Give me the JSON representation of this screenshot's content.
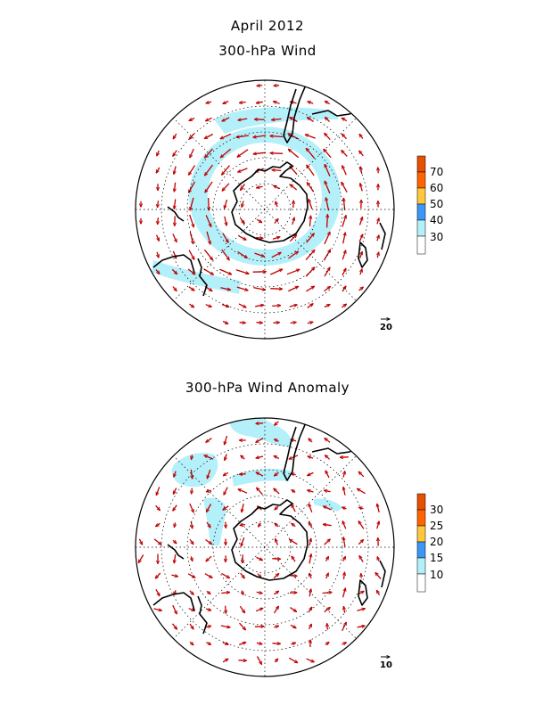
{
  "title": "April 2012",
  "maps": [
    {
      "title": "300-hPa Wind",
      "colorbar_levels": [
        "30",
        "40",
        "50",
        "60",
        "70"
      ],
      "colorbar_colors": [
        "#ffffff",
        "#b4f0fa",
        "#3c96f5",
        "#ffc83c",
        "#ff6400",
        "#e65000"
      ],
      "reference_vector": "20",
      "shading_threshold": 30
    },
    {
      "title": "300-hPa Wind Anomaly",
      "colorbar_levels": [
        "10",
        "15",
        "20",
        "25",
        "30"
      ],
      "colorbar_colors": [
        "#ffffff",
        "#b4f0fa",
        "#3c96f5",
        "#ffc83c",
        "#ff6400",
        "#e65000"
      ],
      "reference_vector": "10",
      "shading_threshold": 10
    }
  ],
  "colors": {
    "vector": "#c00000",
    "coast": "#000000",
    "shade": "#b4f0fa",
    "grid": "#000000"
  }
}
